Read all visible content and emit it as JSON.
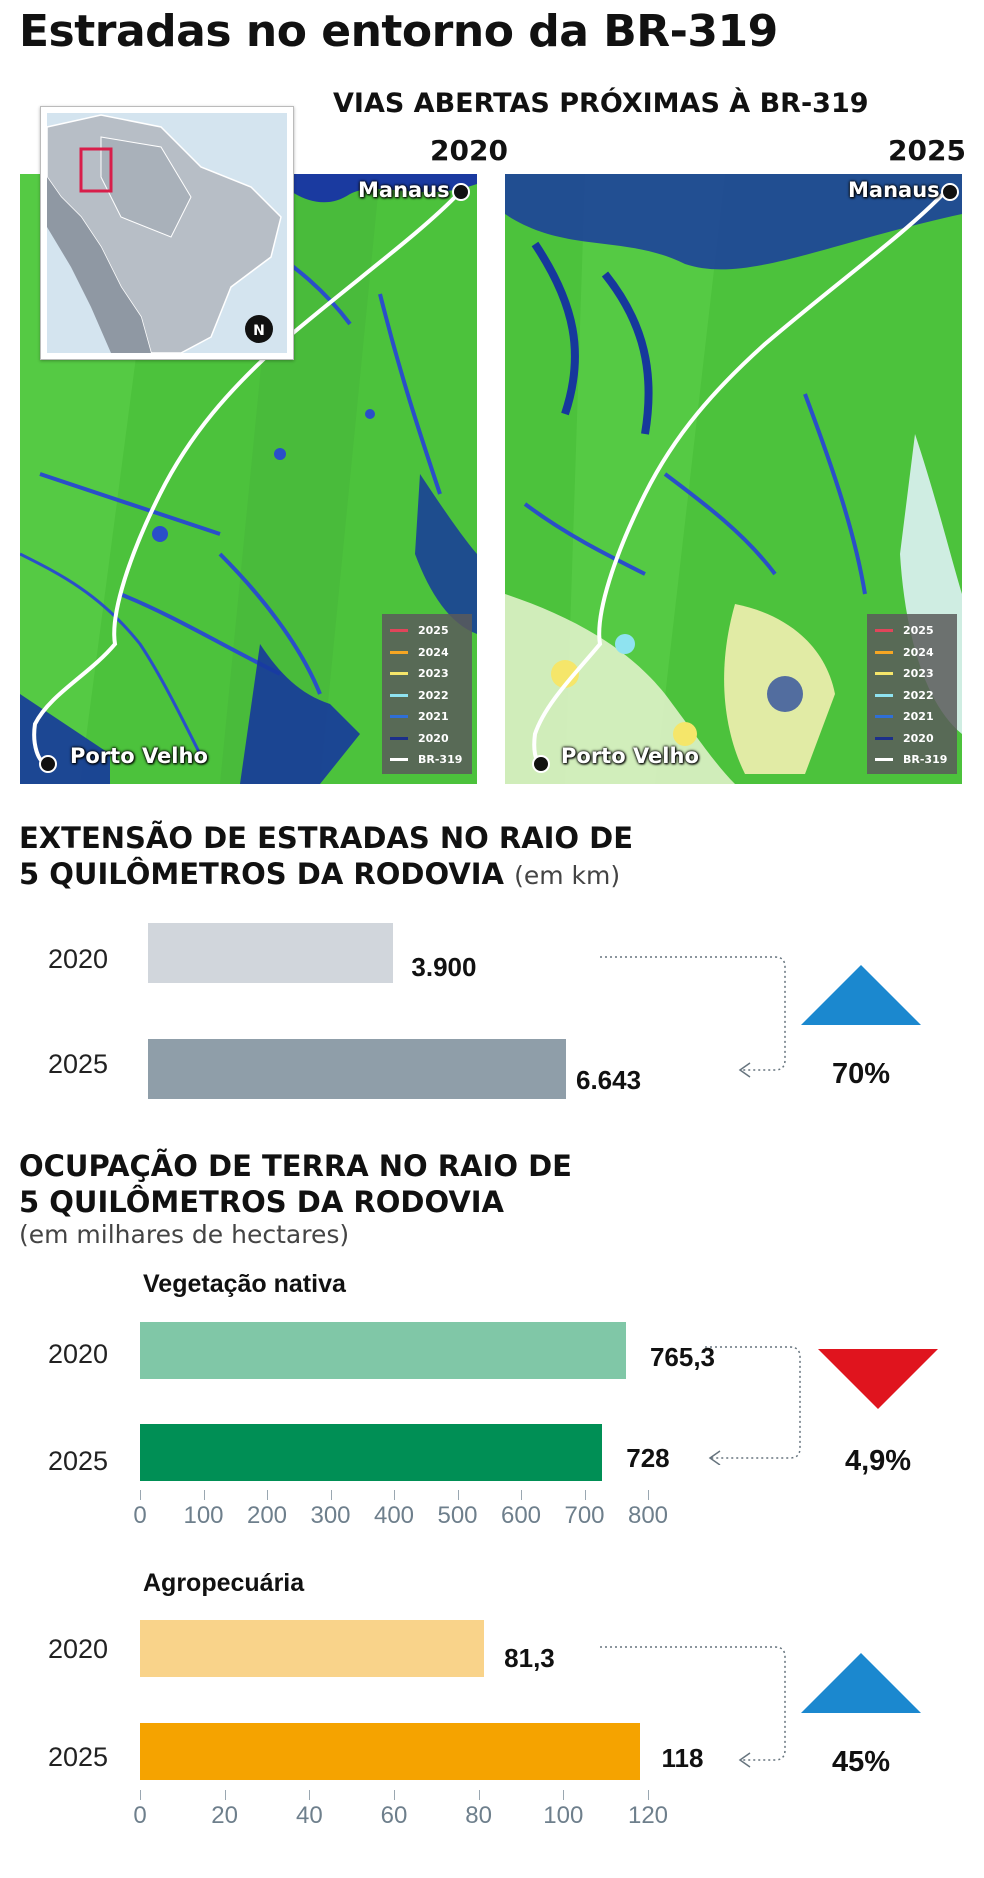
{
  "title": "Estradas no entorno da BR-319",
  "maps": {
    "title": "VIAS ABERTAS PRÓXIMAS À BR-319",
    "left_year": "2020",
    "right_year": "2025",
    "city_north": "Manaus",
    "city_south": "Porto Velho",
    "north_icon": "N",
    "legend": [
      {
        "label": "2025",
        "color": "#e0455a"
      },
      {
        "label": "2024",
        "color": "#f5a623"
      },
      {
        "label": "2023",
        "color": "#f5e66a"
      },
      {
        "label": "2022",
        "color": "#8fe3f0"
      },
      {
        "label": "2021",
        "color": "#2f6fd6"
      },
      {
        "label": "2020",
        "color": "#1c2f8a"
      },
      {
        "label": "BR-319",
        "color": "#ffffff"
      }
    ]
  },
  "roads": {
    "title_line1": "EXTENSÃO DE ESTRADAS NO RAIO DE",
    "title_line2": "5 QUILÔMETROS DA RODOVIA",
    "unit": "(em km)",
    "change": "70%",
    "direction": "up"
  },
  "land": {
    "title_line1": "OCUPAÇÃO DE TERRA NO RAIO DE",
    "title_line2": "5 QUILÔMETROS DA RODOVIA",
    "unit": "(em milhares de hectares)",
    "native": {
      "label": "Vegetação nativa",
      "change": "4,9%",
      "direction": "down"
    },
    "agro": {
      "label": "Agropecuária",
      "change": "45%",
      "direction": "up"
    }
  },
  "colors": {
    "road_2020": "#d1d6dc",
    "road_2025": "#8f9ea9",
    "native_2020": "#80c7a7",
    "native_2025": "#008f55",
    "agro_2020": "#f9d38a",
    "agro_2025": "#f5a300",
    "arrow_up": "#1b88cf",
    "arrow_down": "#e0141e"
  },
  "chart_data": [
    {
      "type": "bar",
      "title": "EXTENSÃO DE ESTRADAS NO RAIO DE 5 QUILÔMETROS DA RODOVIA (em km)",
      "categories": [
        "2020",
        "2025"
      ],
      "values": [
        3900,
        6643
      ],
      "value_labels": [
        "3.900",
        "6.643"
      ],
      "xlim": [
        0,
        7000
      ]
    },
    {
      "type": "bar",
      "title": "Vegetação nativa",
      "categories": [
        "2020",
        "2025"
      ],
      "values": [
        765.3,
        728
      ],
      "value_labels": [
        "765,3",
        "728"
      ],
      "xlim": [
        0,
        800
      ],
      "ticks": [
        "0",
        "100",
        "200",
        "300",
        "400",
        "500",
        "600",
        "700",
        "800"
      ]
    },
    {
      "type": "bar",
      "title": "Agropecuária",
      "categories": [
        "2020",
        "2025"
      ],
      "values": [
        81.3,
        118
      ],
      "value_labels": [
        "81,3",
        "118"
      ],
      "xlim": [
        0,
        120
      ],
      "ticks": [
        "0",
        "20",
        "40",
        "60",
        "80",
        "100",
        "120"
      ]
    }
  ]
}
